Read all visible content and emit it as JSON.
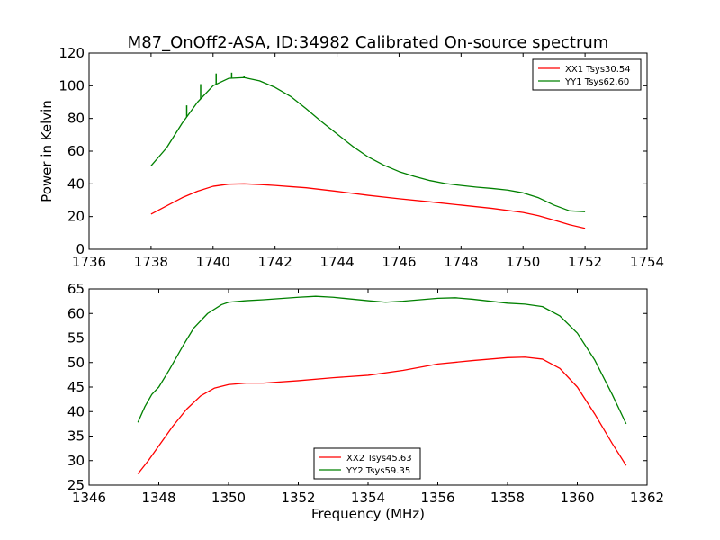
{
  "chart_data": [
    {
      "type": "line",
      "title": "M87_OnOff2-ASA, ID:34982 Calibrated On-source spectrum",
      "xlabel": "",
      "ylabel": "Power in Kelvin",
      "xlim": [
        1736,
        1754
      ],
      "ylim": [
        0,
        120
      ],
      "xticks": [
        1736,
        1738,
        1740,
        1742,
        1744,
        1746,
        1748,
        1750,
        1752,
        1754
      ],
      "yticks": [
        0,
        20,
        40,
        60,
        80,
        100,
        120
      ],
      "grid": false,
      "legend_position": "top-right",
      "series": [
        {
          "name": "XX1 Tsys30.54",
          "color": "#ff0000",
          "x": [
            1738,
            1738.5,
            1739,
            1739.5,
            1740,
            1740.5,
            1741,
            1741.5,
            1742,
            1742.5,
            1743,
            1744,
            1745,
            1746,
            1747,
            1748,
            1749,
            1750,
            1750.5,
            1751,
            1751.5,
            1752
          ],
          "y": [
            21.5,
            26.5,
            31.5,
            35.5,
            38.5,
            39.8,
            40.0,
            39.6,
            39.0,
            38.3,
            37.6,
            35.4,
            33.0,
            30.9,
            29.0,
            27.0,
            25.0,
            22.5,
            20.5,
            17.8,
            15.0,
            12.8
          ]
        },
        {
          "name": "YY1 Tsys62.60",
          "color": "#008000",
          "x": [
            1738,
            1738.5,
            1739,
            1739.5,
            1740,
            1740.5,
            1741,
            1741.5,
            1742,
            1742.5,
            1743,
            1743.5,
            1744,
            1744.5,
            1745,
            1745.5,
            1746,
            1746.5,
            1747,
            1747.5,
            1748,
            1748.5,
            1749,
            1749.5,
            1750,
            1750.5,
            1751,
            1751.5,
            1752
          ],
          "y": [
            51,
            62,
            77,
            90,
            100,
            104.5,
            105,
            103,
            99,
            93.5,
            86,
            78,
            70.5,
            63,
            56.5,
            51.5,
            47.5,
            44.5,
            42,
            40.2,
            39,
            38,
            37.2,
            36.2,
            34.5,
            31.5,
            27,
            23.5,
            23
          ],
          "spikes": [
            {
              "x": 1739.15,
              "y": 88
            },
            {
              "x": 1739.6,
              "y": 101
            },
            {
              "x": 1740.1,
              "y": 107.5
            },
            {
              "x": 1740.6,
              "y": 108
            },
            {
              "x": 1741.0,
              "y": 106
            }
          ]
        }
      ]
    },
    {
      "type": "line",
      "title": "",
      "xlabel": "Frequency (MHz)",
      "ylabel": "",
      "xlim": [
        1346,
        1362
      ],
      "ylim": [
        25,
        65
      ],
      "xticks": [
        1346,
        1348,
        1350,
        1352,
        1354,
        1356,
        1358,
        1360,
        1362
      ],
      "yticks": [
        25,
        30,
        35,
        40,
        45,
        50,
        55,
        60,
        65
      ],
      "grid": false,
      "legend_position": "bottom-center",
      "series": [
        {
          "name": "XX2 Tsys45.63",
          "color": "#ff0000",
          "x": [
            1347.4,
            1347.7,
            1348.0,
            1348.4,
            1348.8,
            1349.2,
            1349.6,
            1350.0,
            1350.5,
            1351.0,
            1352.0,
            1353.0,
            1354.0,
            1355.0,
            1356.0,
            1357.0,
            1358.0,
            1358.5,
            1359.0,
            1359.5,
            1360.0,
            1360.5,
            1361.0,
            1361.4
          ],
          "y": [
            27.3,
            30.0,
            33.0,
            37.0,
            40.5,
            43.2,
            44.8,
            45.5,
            45.8,
            45.8,
            46.3,
            46.9,
            47.4,
            48.4,
            49.7,
            50.4,
            51.0,
            51.1,
            50.7,
            48.8,
            45.0,
            39.5,
            33.5,
            29.0
          ]
        },
        {
          "name": "YY2 Tsys59.35",
          "color": "#008000",
          "x": [
            1347.4,
            1347.6,
            1347.8,
            1348.0,
            1348.3,
            1348.7,
            1349.0,
            1349.4,
            1349.8,
            1350.0,
            1350.5,
            1351.0,
            1352.0,
            1352.5,
            1353.0,
            1354.0,
            1354.5,
            1355.0,
            1356.0,
            1356.5,
            1357.0,
            1358.0,
            1358.5,
            1359.0,
            1359.5,
            1360.0,
            1360.5,
            1361.0,
            1361.4
          ],
          "y": [
            37.8,
            41.0,
            43.5,
            45.0,
            48.5,
            53.5,
            57.0,
            60.0,
            61.8,
            62.3,
            62.6,
            62.8,
            63.3,
            63.5,
            63.3,
            62.6,
            62.3,
            62.5,
            63.1,
            63.2,
            62.9,
            62.1,
            61.9,
            61.4,
            59.5,
            56.0,
            50.5,
            43.5,
            37.5
          ]
        }
      ]
    }
  ]
}
